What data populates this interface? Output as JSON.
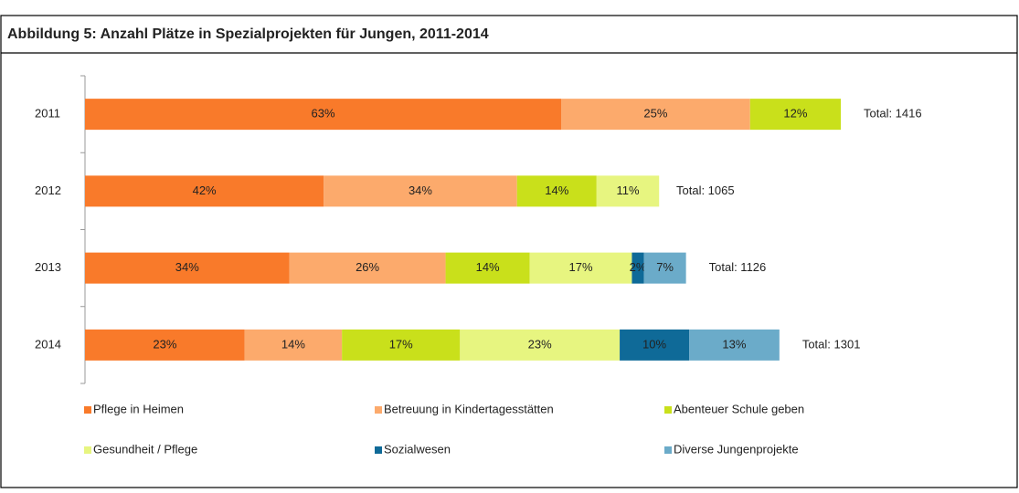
{
  "chart_data": {
    "type": "stacked-bar-horizontal",
    "title": "Abbildung 5: Anzahl Plätze in Spezialprojekten für Jungen, 2011-2014",
    "categories": [
      "2011",
      "2012",
      "2013",
      "2014"
    ],
    "series": [
      {
        "name": "Pflege in Heimen",
        "color": "#f97a2a",
        "values": [
          63,
          42,
          34,
          23
        ],
        "value_labels": [
          "63%",
          "42%",
          "34%",
          "23%"
        ]
      },
      {
        "name": "Betreuung in Kindertagesstätten",
        "color": "#fcaa6c",
        "values": [
          25,
          34,
          26,
          14
        ],
        "value_labels": [
          "25%",
          "34%",
          "26%",
          "14%"
        ]
      },
      {
        "name": "Abenteuer Schule geben",
        "color": "#c9e01b",
        "values": [
          12,
          14,
          14,
          17
        ],
        "value_labels": [
          "12%",
          "14%",
          "14%",
          "17%"
        ]
      },
      {
        "name": "Gesundheit / Pflege",
        "color": "#e7f580",
        "values": [
          null,
          11,
          17,
          23
        ],
        "value_labels": [
          null,
          "11%",
          "17%",
          "23%"
        ]
      },
      {
        "name": "Sozialwesen",
        "color": "#0f6a98",
        "values": [
          null,
          null,
          2,
          10
        ],
        "value_labels": [
          null,
          null,
          "2%",
          "10%"
        ]
      },
      {
        "name": "Diverse Jungenprojekte",
        "color": "#6babc9",
        "values": [
          null,
          null,
          7,
          13
        ],
        "value_labels": [
          null,
          null,
          "7%",
          "13%"
        ]
      }
    ],
    "totals": {
      "values": [
        1416,
        1065,
        1126,
        1301
      ],
      "value_labels": [
        "Total: 1416",
        "Total: 1065",
        "Total: 1126",
        "Total: 1301"
      ]
    },
    "legend": "bottom"
  }
}
